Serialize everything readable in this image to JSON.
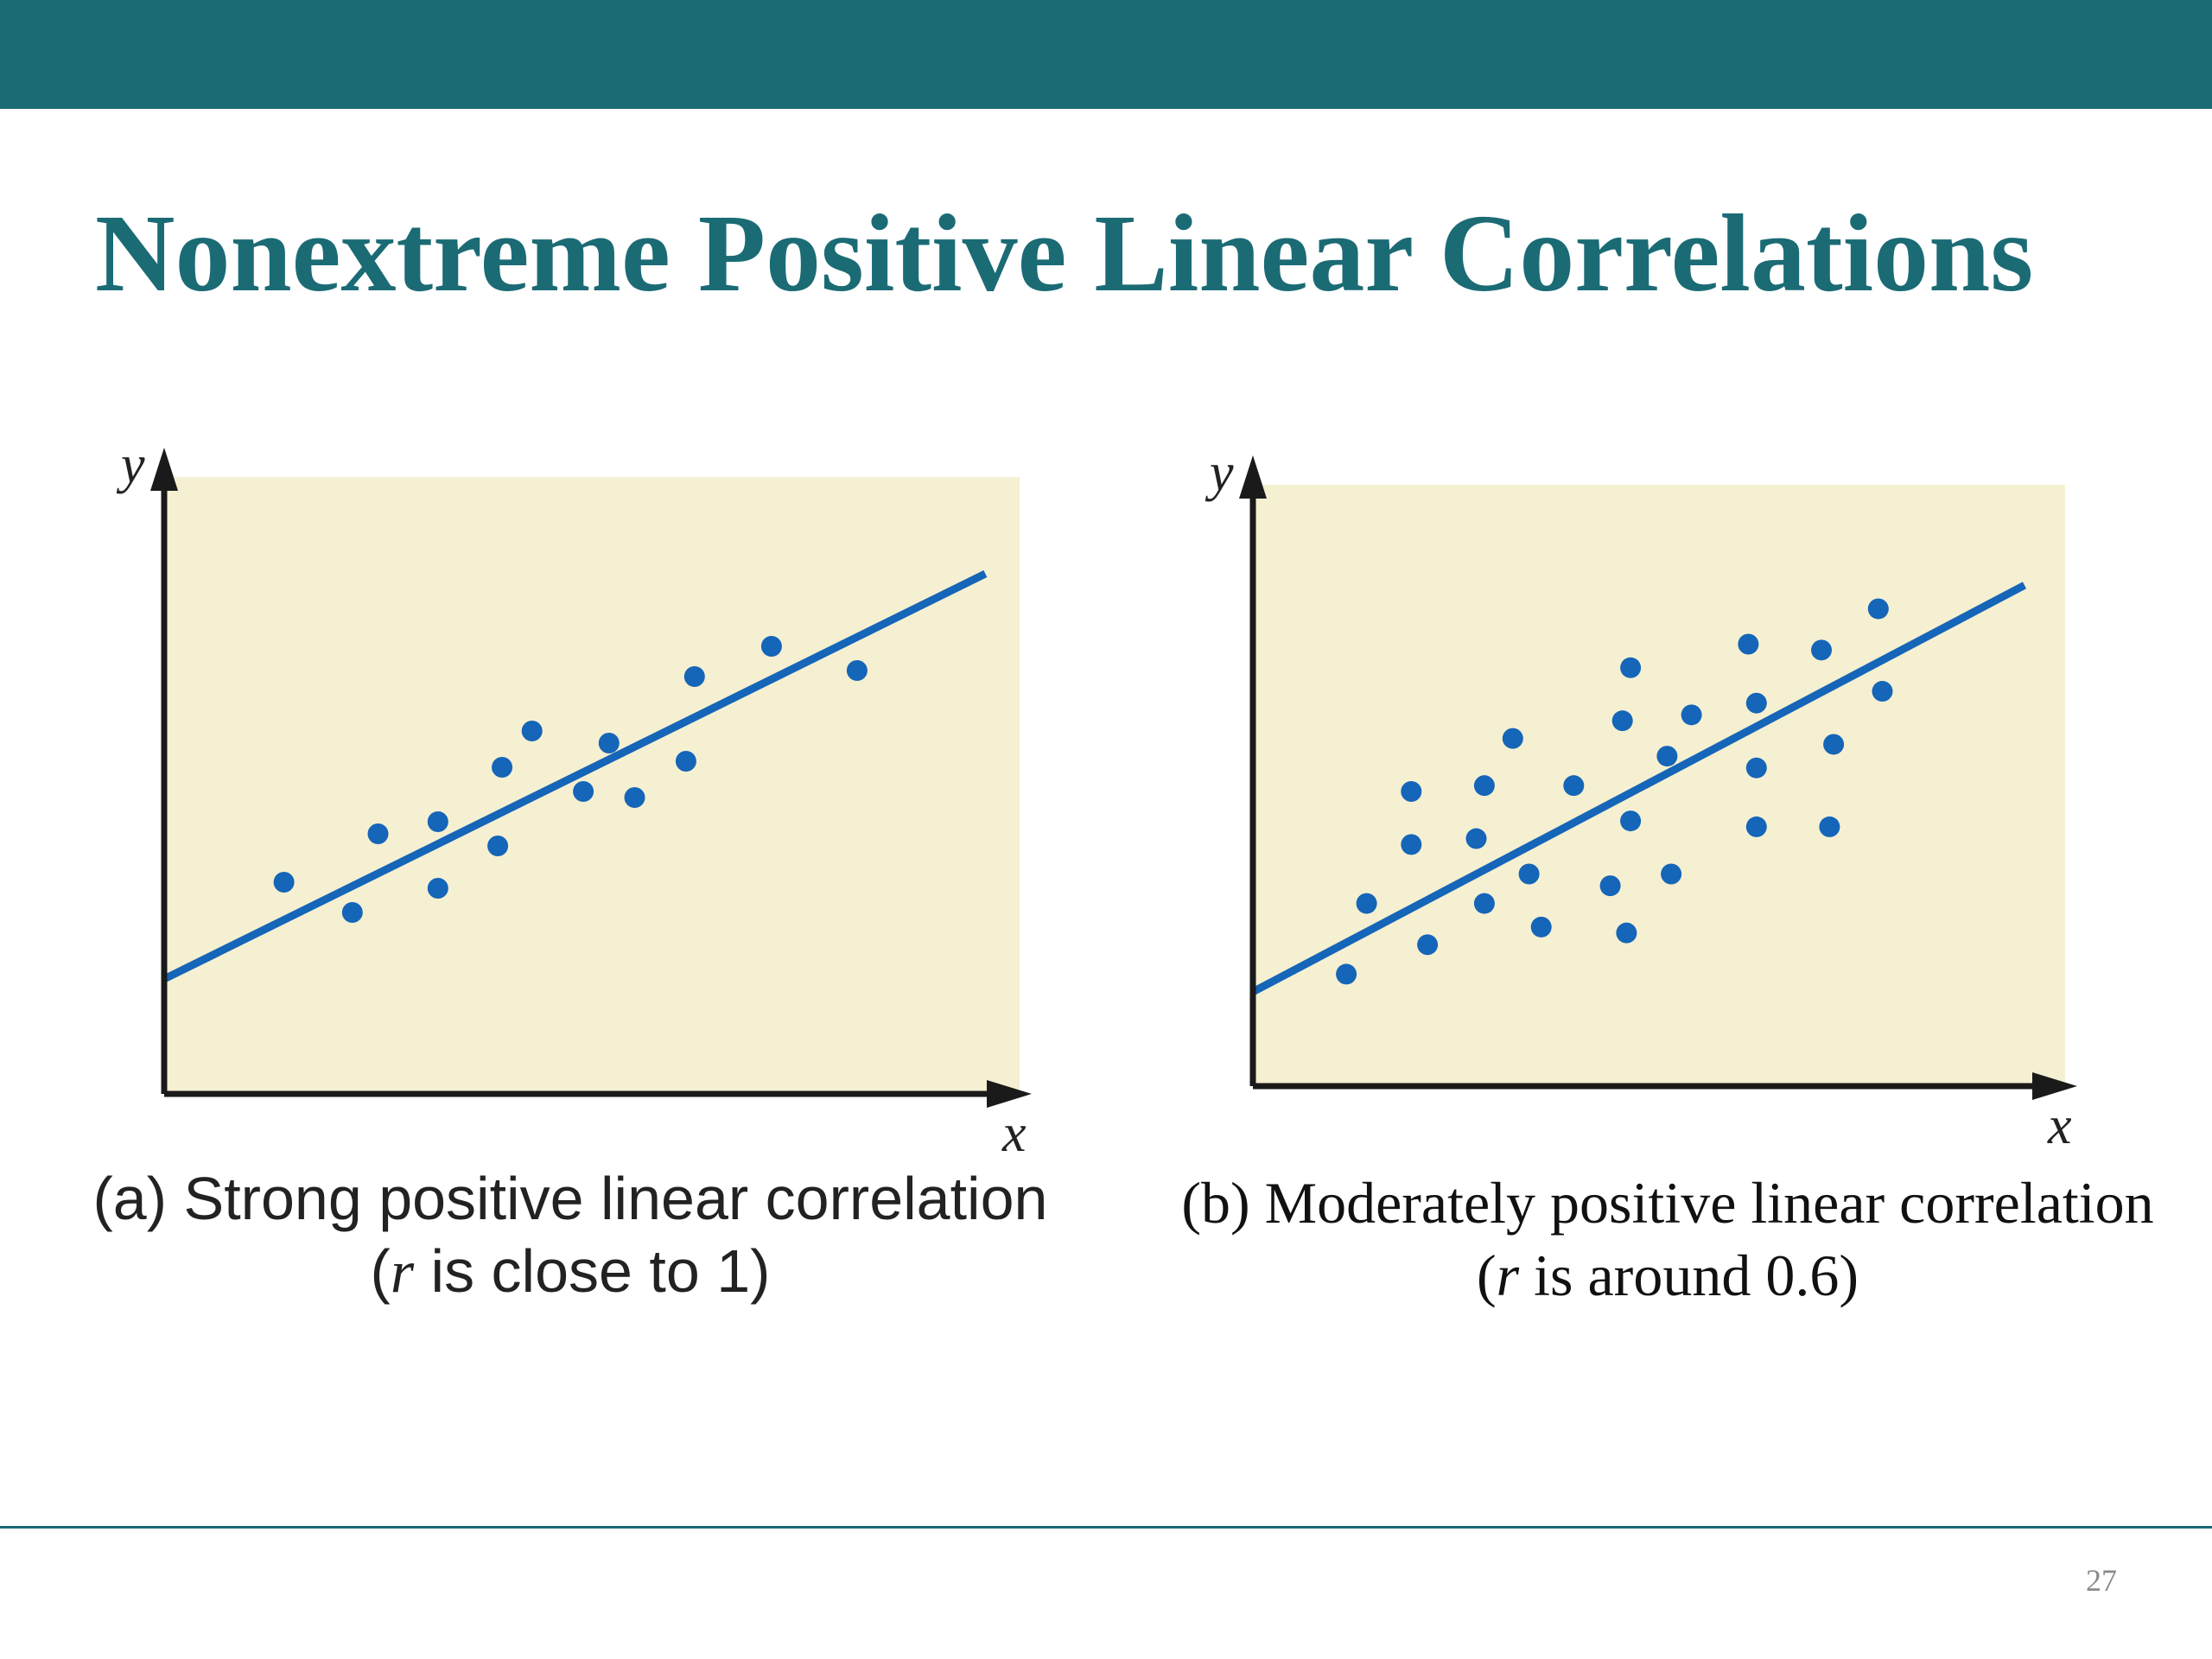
{
  "slide": {
    "title": "Nonextreme Positive Linear Correlations",
    "page_number": "27",
    "accent_color": "#1b6b75"
  },
  "colors": {
    "plot_background": "#f5f0d2",
    "point_color": "#1565b8",
    "axis_color": "#1a1a1a"
  },
  "chart_data": [
    {
      "type": "scatter",
      "title": "",
      "xlabel": "x",
      "ylabel": "y",
      "xlim": [
        0,
        10
      ],
      "ylim": [
        0,
        10
      ],
      "grid": false,
      "x": [
        1.4,
        2.2,
        2.5,
        3.2,
        3.2,
        3.9,
        3.95,
        4.3,
        4.9,
        5.2,
        5.5,
        6.1,
        6.2,
        7.1,
        8.1
      ],
      "y": [
        3.5,
        3.0,
        4.3,
        3.4,
        4.5,
        4.1,
        5.4,
        6.0,
        5.0,
        5.8,
        4.9,
        5.5,
        6.9,
        7.4,
        7.0
      ],
      "trendline": {
        "x": [
          0,
          9.6
        ],
        "y": [
          1.9,
          8.6
        ]
      },
      "caption_label": "(a)",
      "caption_text": " Strong positive linear correlation",
      "caption_line2_open": "(",
      "caption_var": "r",
      "caption_line2_rest": " is close to 1)"
    },
    {
      "type": "scatter",
      "title": "",
      "xlabel": "x",
      "ylabel": "y",
      "xlim": [
        0,
        10
      ],
      "ylim": [
        0,
        10
      ],
      "grid": false,
      "x": [
        1.15,
        1.4,
        1.95,
        2.15,
        1.95,
        2.75,
        2.85,
        2.85,
        3.2,
        3.4,
        3.55,
        3.95,
        4.4,
        4.55,
        4.65,
        4.65,
        4.6,
        5.1,
        5.15,
        5.4,
        6.1,
        6.2,
        6.2,
        6.2,
        7.0,
        7.1,
        7.15,
        7.7,
        7.75
      ],
      "y": [
        1.9,
        3.1,
        4.1,
        2.4,
        5.0,
        4.2,
        5.1,
        3.1,
        5.9,
        3.6,
        2.7,
        5.1,
        3.4,
        6.2,
        4.5,
        7.1,
        2.6,
        5.6,
        3.6,
        6.3,
        7.5,
        4.4,
        6.5,
        5.4,
        7.4,
        4.4,
        5.8,
        8.1,
        6.7
      ],
      "trendline": {
        "x": [
          0,
          9.5
        ],
        "y": [
          1.6,
          8.5
        ]
      },
      "caption_label": "(b)",
      "caption_text": " Moderately positive linear correlation",
      "caption_line2_open": "(",
      "caption_var": "r",
      "caption_line2_rest": " is around 0.6)"
    }
  ]
}
